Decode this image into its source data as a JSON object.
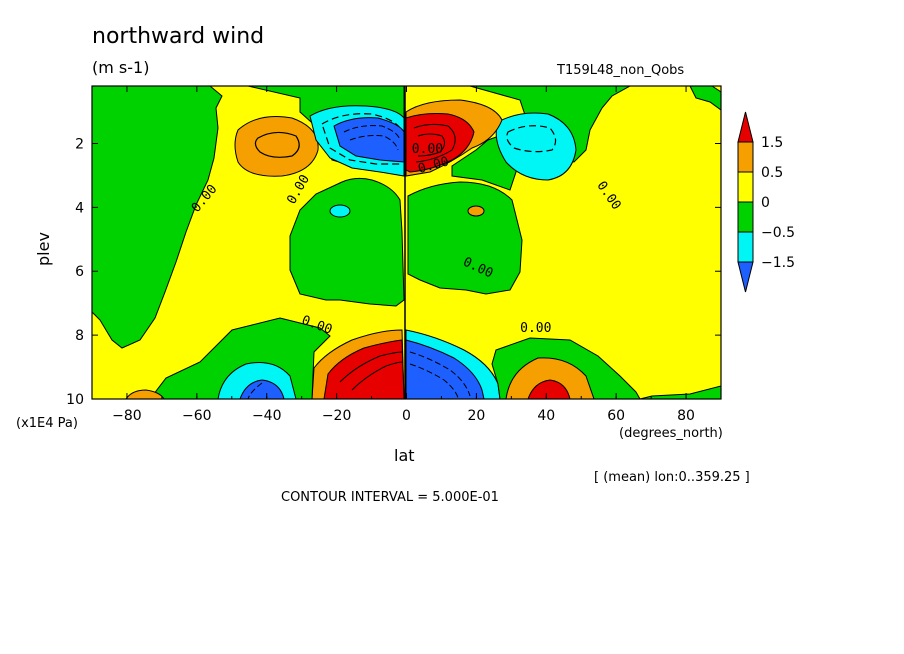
{
  "chart_data": {
    "type": "contour",
    "title": "northward wind",
    "units": "(m s-1)",
    "run_label": "T159L48_non_Qobs",
    "xlabel": "lat",
    "xlabel_units": "(degrees_north)",
    "ylabel": "plev",
    "ylabel_units": "(x1E4 Pa)",
    "xlim": [
      -90,
      90
    ],
    "ylim": [
      10,
      0.2
    ],
    "x_ticks": [
      "-80",
      "-60",
      "-40",
      "-20",
      "0",
      "20",
      "40",
      "60",
      "80"
    ],
    "x_tick_values": [
      -80,
      -60,
      -40,
      -20,
      0,
      20,
      40,
      60,
      80
    ],
    "y_ticks": [
      "2",
      "4",
      "6",
      "8",
      "10"
    ],
    "y_tick_values": [
      2,
      4,
      6,
      8,
      10
    ],
    "contour_interval_text": "CONTOUR INTERVAL = 5.000E-01",
    "mean_note": "[ (mean) lon:0..359.25 ]",
    "contour_labels": [
      "0.00",
      "0.00",
      "0.00",
      "0.00",
      "0.00",
      "0.00",
      "0.00",
      "0.00"
    ],
    "colorbar": {
      "labels": [
        "1.5",
        "0.5",
        "0",
        "-0.5",
        "-1.5"
      ],
      "bins": [
        {
          "range": [
            1.5,
            null
          ],
          "color": "#e60000"
        },
        {
          "range": [
            0.5,
            1.5
          ],
          "color": "#f5a000"
        },
        {
          "range": [
            0,
            0.5
          ],
          "color": "#ffff00"
        },
        {
          "range": [
            -0.5,
            0
          ],
          "color": "#00d200"
        },
        {
          "range": [
            -1.5,
            -0.5
          ],
          "color": "#00f5f5"
        },
        {
          "range": [
            null,
            -1.5
          ],
          "color": "#1e60ff"
        }
      ]
    },
    "features": [
      {
        "lat": -40,
        "plev": 2.0,
        "sign": "positive",
        "level": "0.5-1.5"
      },
      {
        "lat": -12,
        "plev": 1.5,
        "sign": "negative",
        "level": "<-1.5"
      },
      {
        "lat": 8,
        "plev": 1.8,
        "sign": "positive",
        "level": ">1.5"
      },
      {
        "lat": 38,
        "plev": 2.0,
        "sign": "negative",
        "level": "-1.5--0.5"
      },
      {
        "lat": -40,
        "plev": 9.9,
        "sign": "negative",
        "level": "<-1.5"
      },
      {
        "lat": -10,
        "plev": 9.2,
        "sign": "positive",
        "level": ">1.5"
      },
      {
        "lat": 10,
        "plev": 9.3,
        "sign": "negative",
        "level": "<-1.5"
      },
      {
        "lat": 40,
        "plev": 9.8,
        "sign": "positive",
        "level": ">1.5"
      },
      {
        "lat": -75,
        "plev": 9.9,
        "sign": "positive",
        "level": "0.5-1.5"
      },
      {
        "lat": -70,
        "plev": 9.9,
        "sign": "negative",
        "level": "-0.5-0"
      }
    ]
  }
}
